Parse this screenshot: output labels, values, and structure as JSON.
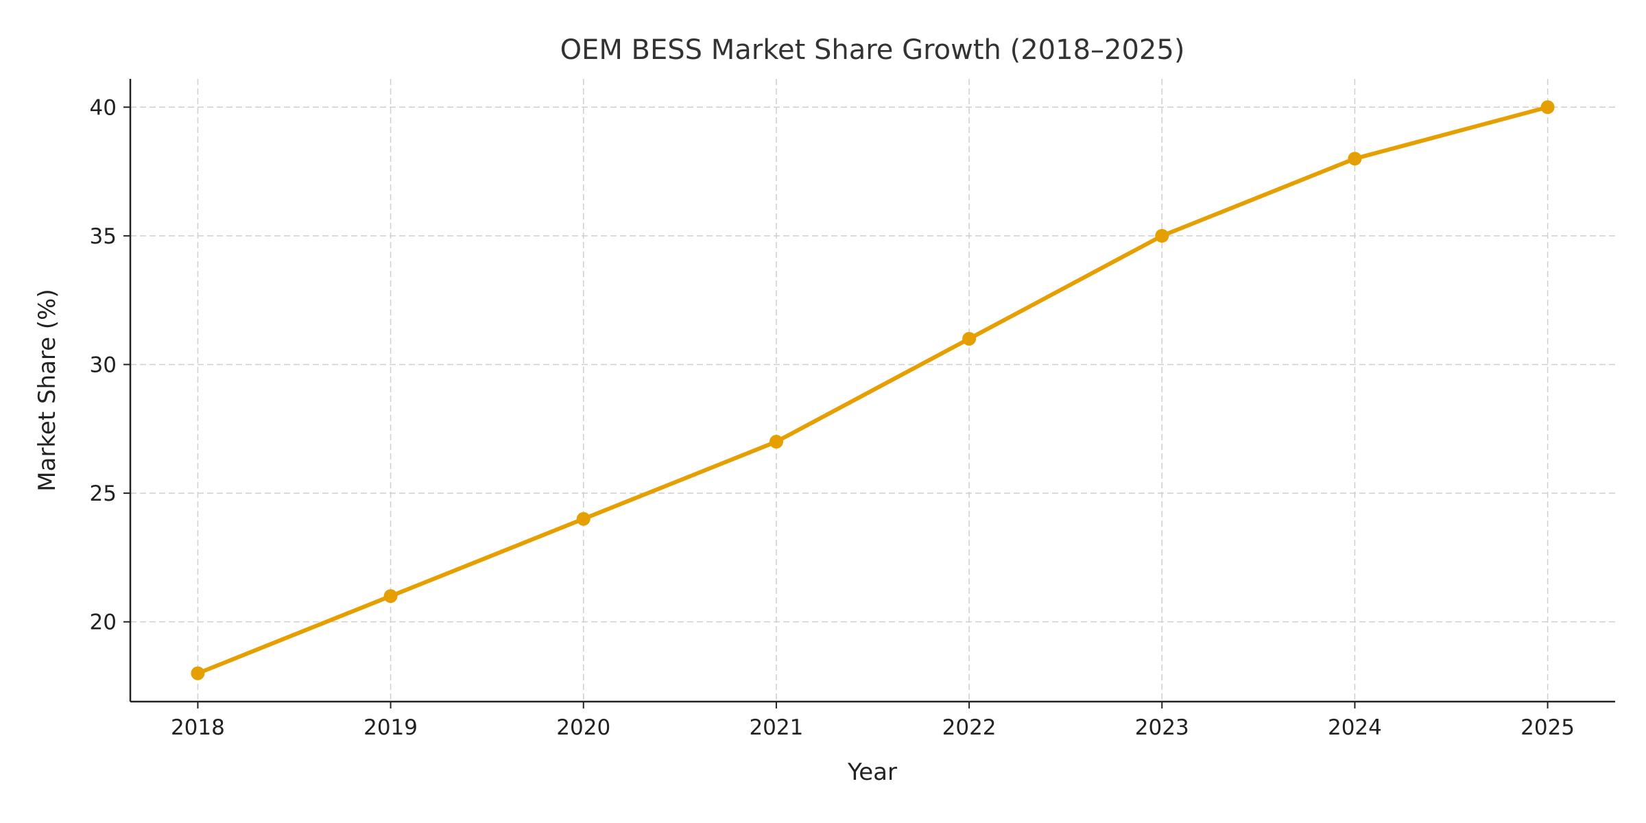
{
  "chart_data": {
    "type": "line",
    "title": "OEM BESS Market Share Growth (2018–2025)",
    "xlabel": "Year",
    "ylabel": "Market Share (%)",
    "x": [
      2018,
      2019,
      2020,
      2021,
      2022,
      2023,
      2024,
      2025
    ],
    "series": [
      {
        "values": [
          18,
          21,
          24,
          27,
          31,
          35,
          38,
          40
        ],
        "color": "#E69F00",
        "marker": "circle"
      }
    ],
    "xticks": [
      "2018",
      "2019",
      "2020",
      "2021",
      "2022",
      "2023",
      "2024",
      "2025"
    ],
    "yticks": [
      "20",
      "25",
      "30",
      "35",
      "40"
    ],
    "xlim": [
      2017.65,
      2025.35
    ],
    "ylim": [
      16.9,
      41.1
    ],
    "grid": true,
    "grid_style": "dashed",
    "legend": "none"
  }
}
